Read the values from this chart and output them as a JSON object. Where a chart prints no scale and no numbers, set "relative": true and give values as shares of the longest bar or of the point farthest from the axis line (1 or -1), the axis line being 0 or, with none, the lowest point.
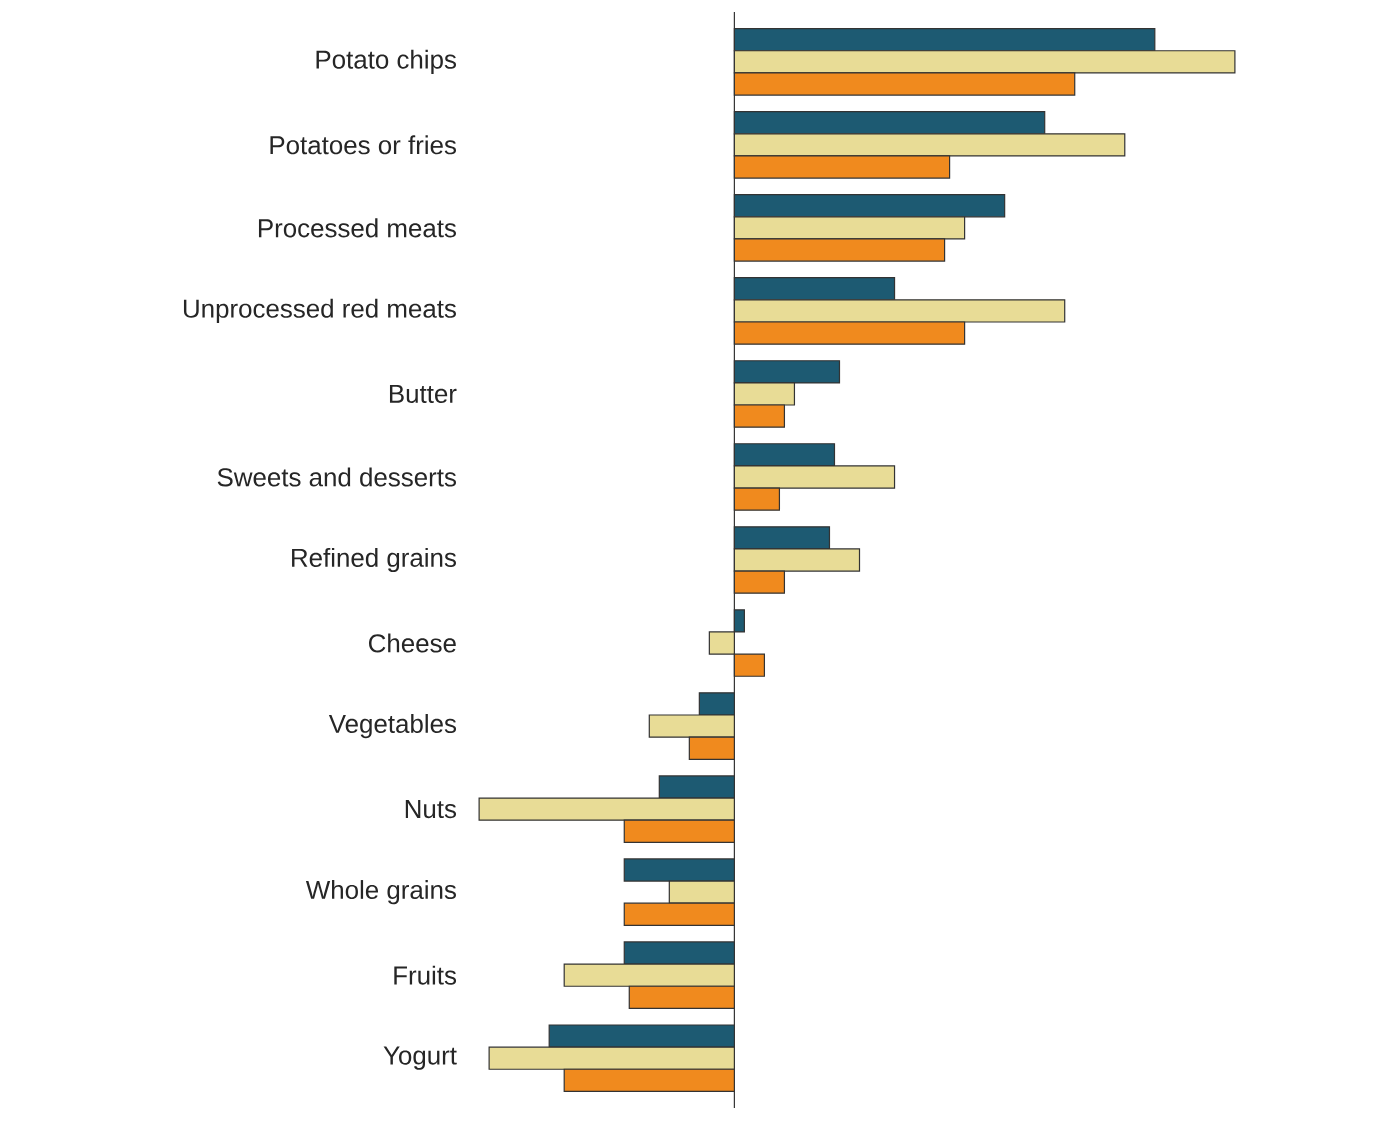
{
  "chart_data": {
    "type": "bar",
    "orientation": "horizontal",
    "relative": true,
    "categories": [
      "Potato chips",
      "Potatoes or fries",
      "Processed meats",
      "Unprocessed red meats",
      "Butter",
      "Sweets and desserts",
      "Refined grains",
      "Cheese",
      "Vegetables",
      "Nuts",
      "Whole grains",
      "Fruits",
      "Yogurt"
    ],
    "series": [
      {
        "color": "#1d5a72",
        "values": [
          0.84,
          0.62,
          0.54,
          0.32,
          0.21,
          0.2,
          0.19,
          0.02,
          -0.07,
          -0.15,
          -0.22,
          -0.22,
          -0.37
        ]
      },
      {
        "color": "#e8dc96",
        "values": [
          1,
          0.78,
          0.46,
          0.66,
          0.12,
          0.32,
          0.25,
          -0.05,
          -0.17,
          -0.51,
          -0.13,
          -0.34,
          -0.49
        ]
      },
      {
        "color": "#f08a1e",
        "values": [
          0.68,
          0.43,
          0.42,
          0.46,
          0.1,
          0.09,
          0.1,
          0.06,
          -0.09,
          -0.22,
          -0.22,
          -0.21,
          -0.34
        ]
      }
    ]
  }
}
